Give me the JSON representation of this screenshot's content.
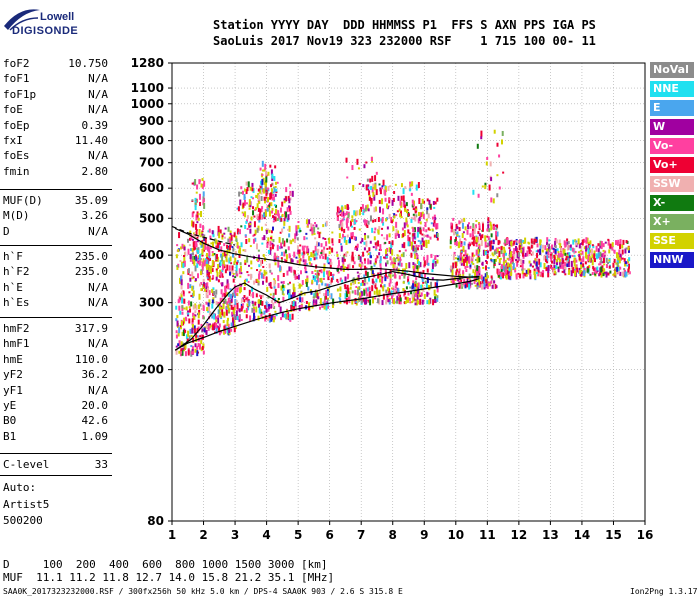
{
  "logo": {
    "line1": "Lowell",
    "line2": "DIGISONDE"
  },
  "header": {
    "line1": "Station YYYY DAY  DDD HHMMSS P1  FFS S AXN PPS IGA PS",
    "line2": "SaoLuis 2017 Nov19 323 232000 RSF    1 715 100 00- 11"
  },
  "params_group1": [
    {
      "k": "foF2",
      "v": "10.750"
    },
    {
      "k": "foF1",
      "v": "N/A"
    },
    {
      "k": "foF1p",
      "v": "N/A"
    },
    {
      "k": "foE",
      "v": "N/A"
    },
    {
      "k": "foEp",
      "v": "0.39"
    },
    {
      "k": "fxI",
      "v": "11.40"
    },
    {
      "k": "foEs",
      "v": "N/A"
    },
    {
      "k": "fmin",
      "v": "2.80"
    }
  ],
  "params_group2": [
    {
      "k": "MUF(D)",
      "v": "35.09"
    },
    {
      "k": "M(D)",
      "v": "3.26"
    },
    {
      "k": "D",
      "v": "N/A"
    }
  ],
  "params_group3": [
    {
      "k": "h`F",
      "v": "235.0"
    },
    {
      "k": "h`F2",
      "v": "235.0"
    },
    {
      "k": "h`E",
      "v": "N/A"
    },
    {
      "k": "h`Es",
      "v": "N/A"
    }
  ],
  "params_group4": [
    {
      "k": "hmF2",
      "v": "317.9"
    },
    {
      "k": "hmF1",
      "v": "N/A"
    },
    {
      "k": "hmE",
      "v": "110.0"
    },
    {
      "k": "yF2",
      "v": "36.2"
    },
    {
      "k": "yF1",
      "v": "N/A"
    },
    {
      "k": "yE",
      "v": "20.0"
    },
    {
      "k": "B0",
      "v": "42.6"
    },
    {
      "k": "B1",
      "v": "1.09"
    }
  ],
  "clevel": {
    "k": "C-level",
    "v": "33"
  },
  "autoscale": {
    "line1": "Auto:",
    "line2": "Artist5",
    "line3": "500200"
  },
  "legend": [
    {
      "label": "NoVal",
      "color": "#8c8c8c"
    },
    {
      "label": "NNE",
      "color": "#20e0f0"
    },
    {
      "label": "E",
      "color": "#4aa6ee"
    },
    {
      "label": "W",
      "color": "#a000a0"
    },
    {
      "label": "Vo-",
      "color": "#ff40a0"
    },
    {
      "label": "Vo+",
      "color": "#ee0033"
    },
    {
      "label": "SSW",
      "color": "#f0b0b0"
    },
    {
      "label": "X-",
      "color": "#107a10"
    },
    {
      "label": "X+",
      "color": "#7ab060"
    },
    {
      "label": "SSE",
      "color": "#d2d200"
    },
    {
      "label": "NNW",
      "color": "#1a18c8"
    }
  ],
  "muf_table": {
    "line1": "D     100  200  400  600  800 1000 1500 3000 [km]",
    "line2": "MUF  11.1 11.2 11.8 12.7 14.0 15.8 21.2 35.1 [MHz]"
  },
  "footer": {
    "left": "SAA0K_2017323232000.RSF / 300fx256h 50 kHz 5.0 km / DPS-4 SAA0K 903 / 2.6 S 315.8 E",
    "right": "Ion2Png 1.3.17"
  },
  "chart_data": {
    "type": "scatter",
    "title": "",
    "xlabel": "",
    "ylabel": "",
    "xlim": [
      1,
      16
    ],
    "ylim": [
      80,
      1280
    ],
    "y_scale": "log",
    "x_ticks": [
      1,
      2,
      3,
      4,
      5,
      6,
      7,
      8,
      9,
      10,
      11,
      12,
      13,
      14,
      15,
      16
    ],
    "y_ticks": [
      80,
      200,
      300,
      400,
      500,
      600,
      700,
      800,
      900,
      1000,
      1100,
      1280
    ],
    "grid": true,
    "legend_position": "right",
    "series": [
      {
        "kind": "trace",
        "points": [
          [
            1.1,
            225
          ],
          [
            1.5,
            235
          ],
          [
            2.0,
            243
          ],
          [
            2.5,
            252
          ],
          [
            3.0,
            260
          ],
          [
            3.5,
            268
          ],
          [
            4.0,
            276
          ],
          [
            4.5,
            283
          ],
          [
            5.0,
            289
          ],
          [
            5.5,
            294
          ],
          [
            6.0,
            299
          ],
          [
            6.5,
            303
          ],
          [
            7.0,
            307
          ],
          [
            7.5,
            312
          ],
          [
            8.0,
            317
          ],
          [
            8.5,
            321
          ],
          [
            9.0,
            326
          ],
          [
            9.5,
            331
          ],
          [
            10.0,
            336
          ],
          [
            10.5,
            342
          ],
          [
            10.75,
            347
          ]
        ]
      },
      {
        "kind": "trace",
        "points": [
          [
            1.1,
            470
          ],
          [
            1.5,
            455
          ],
          [
            2.0,
            430
          ],
          [
            2.5,
            413
          ],
          [
            3.0,
            403
          ],
          [
            3.5,
            396
          ],
          [
            4.0,
            390
          ],
          [
            4.5,
            385
          ],
          [
            5.0,
            378
          ],
          [
            5.5,
            373
          ],
          [
            6.0,
            370
          ],
          [
            6.5,
            367
          ],
          [
            7.0,
            367
          ],
          [
            7.5,
            369
          ],
          [
            8.0,
            366
          ],
          [
            8.5,
            363
          ],
          [
            9.0,
            358
          ],
          [
            9.5,
            355
          ],
          [
            10.0,
            352
          ],
          [
            10.5,
            350
          ],
          [
            10.75,
            350
          ]
        ]
      },
      {
        "kind": "trace",
        "points": [
          [
            1.1,
            225
          ],
          [
            1.6,
            240
          ],
          [
            2.0,
            262
          ],
          [
            2.4,
            290
          ],
          [
            2.8,
            318
          ],
          [
            3.0,
            330
          ],
          [
            3.3,
            338
          ],
          [
            3.6,
            326
          ],
          [
            4.0,
            314
          ],
          [
            4.4,
            300
          ],
          [
            4.8,
            308
          ],
          [
            5.2,
            318
          ],
          [
            5.6,
            322
          ],
          [
            6.0,
            330
          ],
          [
            6.4,
            337
          ],
          [
            6.8,
            345
          ],
          [
            7.2,
            350
          ],
          [
            7.6,
            356
          ],
          [
            8.0,
            362
          ],
          [
            8.4,
            357
          ],
          [
            8.8,
            351
          ],
          [
            9.2,
            345
          ],
          [
            9.6,
            344
          ],
          [
            10.0,
            347
          ],
          [
            10.4,
            350
          ],
          [
            10.75,
            352
          ]
        ]
      },
      {
        "kind": "dashed",
        "points": [
          [
            1.0,
            476
          ],
          [
            1.5,
            458
          ],
          [
            2.0,
            446
          ],
          [
            2.5,
            435
          ],
          [
            3.0,
            425
          ]
        ]
      }
    ],
    "echo_clusters": [
      {
        "x": [
          1.1,
          2.0
        ],
        "y": [
          220,
          460
        ],
        "density": 240
      },
      {
        "x": [
          1.6,
          2.0
        ],
        "y": [
          380,
          640
        ],
        "density": 90
      },
      {
        "x": [
          2.0,
          3.0
        ],
        "y": [
          250,
          470
        ],
        "density": 320
      },
      {
        "x": [
          3.0,
          4.8
        ],
        "y": [
          270,
          620
        ],
        "density": 420
      },
      {
        "x": [
          3.7,
          4.3
        ],
        "y": [
          500,
          700
        ],
        "density": 80
      },
      {
        "x": [
          4.8,
          6.1
        ],
        "y": [
          290,
          490
        ],
        "density": 260
      },
      {
        "x": [
          6.2,
          7.2
        ],
        "y": [
          300,
          540
        ],
        "density": 230
      },
      {
        "x": [
          7.2,
          8.8
        ],
        "y": [
          300,
          620
        ],
        "density": 380
      },
      {
        "x": [
          8.6,
          9.4
        ],
        "y": [
          300,
          560
        ],
        "density": 180
      },
      {
        "x": [
          9.8,
          11.3
        ],
        "y": [
          330,
          500
        ],
        "density": 320
      },
      {
        "x": [
          11.3,
          12.5
        ],
        "y": [
          350,
          440
        ],
        "density": 200
      },
      {
        "x": [
          12.5,
          15.5
        ],
        "y": [
          355,
          440
        ],
        "density": 420
      },
      {
        "x": [
          6.5,
          7.5
        ],
        "y": [
          600,
          730
        ],
        "density": 25
      },
      {
        "x": [
          10.5,
          11.5
        ],
        "y": [
          550,
          880
        ],
        "density": 25
      }
    ]
  }
}
